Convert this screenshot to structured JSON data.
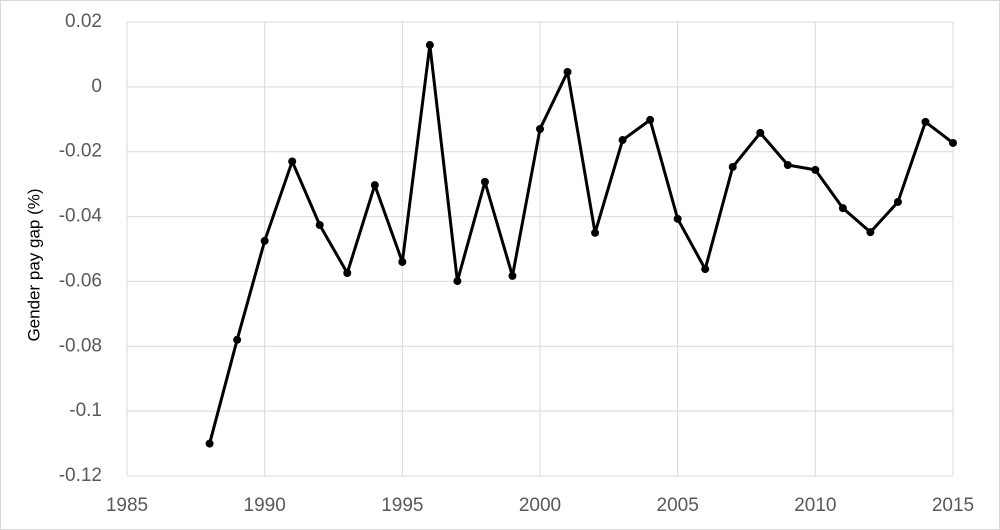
{
  "chart_data": {
    "type": "line",
    "y_label": "Gender pay gap (%)",
    "x": [
      1988,
      1989,
      1990,
      1991,
      1992,
      1993,
      1994,
      1995,
      1996,
      1997,
      1998,
      1999,
      2000,
      2001,
      2002,
      2003,
      2004,
      2005,
      2006,
      2007,
      2008,
      2009,
      2010,
      2011,
      2012,
      2013,
      2014,
      2015
    ],
    "series": [
      {
        "color": "#000000",
        "values": [
          -0.11,
          -0.078,
          -0.0475,
          -0.023,
          -0.0426,
          -0.0574,
          -0.0303,
          -0.054,
          0.0129,
          -0.0599,
          -0.0293,
          -0.0583,
          -0.013,
          0.0046,
          -0.045,
          -0.0164,
          -0.0102,
          -0.0407,
          -0.0562,
          -0.0247,
          -0.0142,
          -0.0241,
          -0.0256,
          -0.0374,
          -0.0448,
          -0.0355,
          -0.0108,
          -0.0173
        ]
      }
    ],
    "xlim": [
      1985,
      2015
    ],
    "xticks": [
      1985,
      1990,
      1995,
      2000,
      2005,
      2010,
      2015
    ],
    "ylim": [
      -0.12,
      0.02
    ],
    "yticks": [
      -0.12,
      -0.1,
      -0.08,
      -0.06,
      -0.04,
      -0.02,
      0,
      0.02
    ],
    "grid": true
  }
}
